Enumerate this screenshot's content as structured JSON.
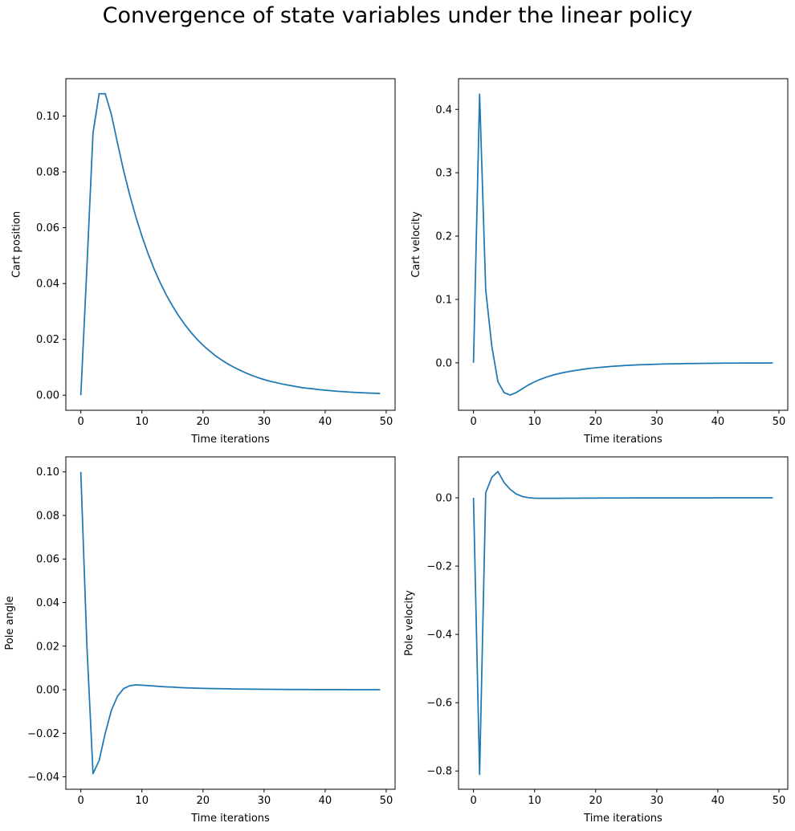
{
  "figure": {
    "title": "Convergence of state variables under the linear policy",
    "line_color": "#1f77b4"
  },
  "chart_data": [
    {
      "type": "line",
      "xlabel": "Time iterations",
      "ylabel": "Cart position",
      "xlim": [
        -2.45,
        51.45
      ],
      "ylim": [
        -0.0054,
        0.1134
      ],
      "xticks": [
        0,
        10,
        20,
        30,
        40,
        50
      ],
      "yticks": [
        0.0,
        0.02,
        0.04,
        0.06,
        0.08,
        0.1
      ],
      "ytick_labels": [
        "0.00",
        "0.02",
        "0.04",
        "0.06",
        "0.08",
        "0.10"
      ],
      "grid": false,
      "series": [
        {
          "x": [
            0,
            1,
            2,
            3,
            4,
            5,
            6,
            7,
            8,
            9,
            10,
            11,
            12,
            13,
            14,
            15,
            16,
            17,
            18,
            19,
            20,
            21,
            22,
            23,
            24,
            25,
            26,
            27,
            28,
            29,
            30,
            31,
            32,
            33,
            34,
            35,
            36,
            37,
            38,
            39,
            40,
            41,
            42,
            43,
            44,
            45,
            46,
            47,
            48,
            49
          ],
          "y": [
            0.0,
            0.046,
            0.094,
            0.108,
            0.108,
            0.1006,
            0.0904,
            0.0805,
            0.0718,
            0.064,
            0.057,
            0.0508,
            0.0452,
            0.0403,
            0.0359,
            0.032,
            0.0285,
            0.0254,
            0.0226,
            0.0201,
            0.0179,
            0.016,
            0.0142,
            0.0127,
            0.0113,
            0.0101,
            0.009,
            0.008,
            0.0071,
            0.0063,
            0.0056,
            0.005,
            0.0045,
            0.004,
            0.0036,
            0.0032,
            0.0028,
            0.0025,
            0.0023,
            0.002,
            0.0018,
            0.0016,
            0.0014,
            0.0013,
            0.0011,
            0.001,
            0.0009,
            0.0008,
            0.0007,
            0.0006
          ]
        }
      ]
    },
    {
      "type": "line",
      "xlabel": "Time iterations",
      "ylabel": "Cart velocity",
      "xlim": [
        -2.45,
        51.45
      ],
      "ylim": [
        -0.075,
        0.4485
      ],
      "xticks": [
        0,
        10,
        20,
        30,
        40,
        50
      ],
      "yticks": [
        0.0,
        0.1,
        0.2,
        0.3,
        0.4
      ],
      "ytick_labels": [
        "0.0",
        "0.1",
        "0.2",
        "0.3",
        "0.4"
      ],
      "grid": false,
      "series": [
        {
          "x": [
            0,
            1,
            2,
            3,
            4,
            5,
            6,
            7,
            8,
            9,
            10,
            11,
            12,
            13,
            14,
            15,
            16,
            17,
            18,
            19,
            20,
            21,
            22,
            23,
            24,
            25,
            26,
            27,
            28,
            29,
            30,
            31,
            32,
            33,
            34,
            35,
            36,
            37,
            38,
            39,
            40,
            41,
            42,
            43,
            44,
            45,
            46,
            47,
            48,
            49
          ],
          "y": [
            0.0,
            0.424,
            0.115,
            0.026,
            -0.03,
            -0.047,
            -0.051,
            -0.047,
            -0.041,
            -0.035,
            -0.03,
            -0.026,
            -0.0225,
            -0.0195,
            -0.017,
            -0.015,
            -0.0132,
            -0.0116,
            -0.0102,
            -0.009,
            -0.0079,
            -0.007,
            -0.0062,
            -0.0054,
            -0.0048,
            -0.0042,
            -0.0037,
            -0.0033,
            -0.0029,
            -0.0026,
            -0.0023,
            -0.002,
            -0.0018,
            -0.0016,
            -0.0014,
            -0.0012,
            -0.0011,
            -0.001,
            -0.0009,
            -0.0008,
            -0.0007,
            -0.0006,
            -0.0005,
            -0.0005,
            -0.0004,
            -0.0004,
            -0.0003,
            -0.0003,
            -0.0003,
            -0.0002
          ]
        }
      ]
    },
    {
      "type": "line",
      "xlabel": "Time iterations",
      "ylabel": "Pole angle",
      "xlim": [
        -2.45,
        51.45
      ],
      "ylim": [
        -0.0457,
        0.1069
      ],
      "xticks": [
        0,
        10,
        20,
        30,
        40,
        50
      ],
      "yticks": [
        -0.04,
        -0.02,
        0.0,
        0.02,
        0.04,
        0.06,
        0.08,
        0.1
      ],
      "ytick_labels": [
        "−0.04",
        "−0.02",
        "0.00",
        "0.02",
        "0.04",
        "0.06",
        "0.08",
        "0.10"
      ],
      "grid": false,
      "series": [
        {
          "x": [
            0,
            1,
            2,
            3,
            4,
            5,
            6,
            7,
            8,
            9,
            10,
            11,
            12,
            13,
            14,
            15,
            16,
            17,
            18,
            19,
            20,
            21,
            22,
            23,
            24,
            25,
            26,
            27,
            28,
            29,
            30,
            31,
            32,
            33,
            34,
            35,
            36,
            37,
            38,
            39,
            40,
            41,
            42,
            43,
            44,
            45,
            46,
            47,
            48,
            49
          ],
          "y": [
            0.1,
            0.02,
            -0.0385,
            -0.0325,
            -0.02,
            -0.0095,
            -0.003,
            0.0005,
            0.0018,
            0.0022,
            0.0021,
            0.0019,
            0.0017,
            0.0015,
            0.0013,
            0.0012,
            0.001,
            0.0009,
            0.0008,
            0.0007,
            0.0006,
            0.00055,
            0.0005,
            0.00045,
            0.0004,
            0.00035,
            0.0003,
            0.00028,
            0.00025,
            0.00022,
            0.0002,
            0.00018,
            0.00016,
            0.00014,
            0.00012,
            0.0001,
            9e-05,
            8e-05,
            7e-05,
            6e-05,
            5e-05,
            5e-05,
            4e-05,
            4e-05,
            3e-05,
            3e-05,
            2e-05,
            2e-05,
            2e-05,
            1e-05
          ]
        }
      ]
    },
    {
      "type": "line",
      "xlabel": "Time iterations",
      "ylabel": "Pole velocity",
      "xlim": [
        -2.45,
        51.45
      ],
      "ylim": [
        -0.8535,
        0.12
      ],
      "xticks": [
        0,
        10,
        20,
        30,
        40,
        50
      ],
      "yticks": [
        -0.8,
        -0.6,
        -0.4,
        -0.2,
        0.0
      ],
      "ytick_labels": [
        "−0.8",
        "−0.6",
        "−0.4",
        "−0.2",
        "0.0"
      ],
      "grid": false,
      "series": [
        {
          "x": [
            0,
            1,
            2,
            3,
            4,
            5,
            6,
            7,
            8,
            9,
            10,
            11,
            12,
            13,
            14,
            15,
            16,
            17,
            18,
            19,
            20,
            21,
            22,
            23,
            24,
            25,
            26,
            27,
            28,
            29,
            30,
            31,
            32,
            33,
            34,
            35,
            36,
            37,
            38,
            39,
            40,
            41,
            42,
            43,
            44,
            45,
            46,
            47,
            48,
            49
          ],
          "y": [
            0.0,
            -0.81,
            0.015,
            0.06,
            0.077,
            0.045,
            0.025,
            0.011,
            0.004,
            0.0005,
            -0.001,
            -0.0015,
            -0.0015,
            -0.0014,
            -0.0013,
            -0.0012,
            -0.0011,
            -0.001,
            -0.0009,
            -0.0008,
            -0.0007,
            -0.0006,
            -0.0005,
            -0.0005,
            -0.0004,
            -0.0004,
            -0.0003,
            -0.0003,
            -0.0003,
            -0.0002,
            -0.0002,
            -0.0002,
            -0.0002,
            -0.0001,
            -0.0001,
            -0.0001,
            -0.0001,
            -0.0001,
            -0.0001,
            -0.0001,
            -5e-05,
            -5e-05,
            -5e-05,
            -4e-05,
            -4e-05,
            -3e-05,
            -3e-05,
            -3e-05,
            -2e-05,
            -2e-05
          ]
        }
      ]
    }
  ]
}
